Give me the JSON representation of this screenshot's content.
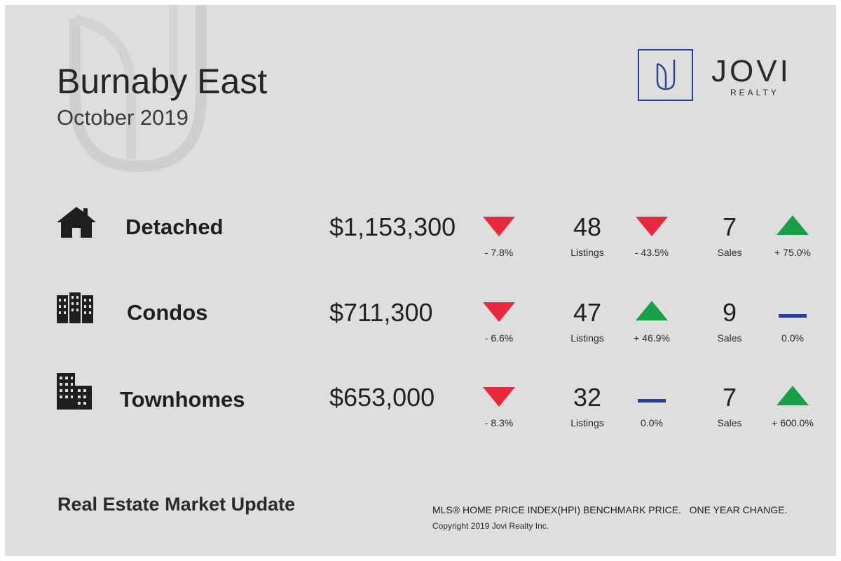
{
  "header": {
    "title": "Burnaby East",
    "subtitle": "October 2019"
  },
  "logo": {
    "mark": "J",
    "name": "JOVI",
    "sub": "REALTY",
    "color": "#2e3f8f"
  },
  "colors": {
    "down": "#e8283c",
    "up": "#1a9f48",
    "flat": "#2a3f98"
  },
  "rows": [
    {
      "label": "Detached",
      "icon": "house-icon",
      "price": "$1,153,300",
      "price_change": {
        "direction": "down",
        "text": "- 7.8%"
      },
      "listings": {
        "value": "48",
        "label": "Listings",
        "direction": "down",
        "text": "- 43.5%"
      },
      "sales": {
        "value": "7",
        "label": "Sales",
        "direction": "up",
        "text": "+ 75.0%"
      }
    },
    {
      "label": "Condos",
      "icon": "apartment-building-icon",
      "price": "$711,300",
      "price_change": {
        "direction": "down",
        "text": "- 6.6%"
      },
      "listings": {
        "value": "47",
        "label": "Listings",
        "direction": "up",
        "text": "+ 46.9%"
      },
      "sales": {
        "value": "9",
        "label": "Sales",
        "direction": "flat",
        "text": "0.0%"
      }
    },
    {
      "label": "Townhomes",
      "icon": "townhouse-building-icon",
      "price": "$653,000",
      "price_change": {
        "direction": "down",
        "text": "- 8.3%"
      },
      "listings": {
        "value": "32",
        "label": "Listings",
        "direction": "flat",
        "text": "0.0%"
      },
      "sales": {
        "value": "7",
        "label": "Sales",
        "direction": "up",
        "text": "+ 600.0%"
      }
    }
  ],
  "footer": {
    "title": "Real Estate Market Update",
    "note": "MLS® HOME PRICE INDEX(HPI) BENCHMARK PRICE.   ONE YEAR CHANGE.",
    "copyright": "Copyright 2019 Jovi Realty Inc."
  }
}
